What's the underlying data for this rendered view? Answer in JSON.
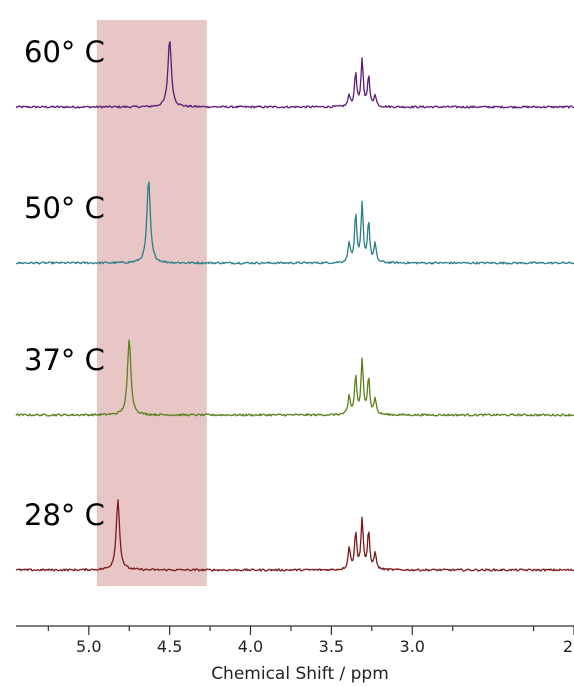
{
  "chart_data": {
    "type": "line",
    "title": "",
    "xlabel": "Chemical Shift / ppm",
    "ylabel": "",
    "x_reversed": true,
    "xlim": [
      5.45,
      2.0
    ],
    "x_ticks_major": [
      5.0,
      4.5,
      4.0,
      3.5,
      3.0,
      2.0
    ],
    "x_tick_labels": [
      "5.0",
      "4.5",
      "4.0",
      "3.5",
      "3.0",
      "2"
    ],
    "x_ticks_minor": [
      5.25,
      4.75,
      4.25,
      3.75,
      3.25,
      2.75,
      2.25
    ],
    "highlight_region": {
      "x_range": [
        4.95,
        4.27
      ],
      "color": "#e8c6c6"
    },
    "grid": false,
    "legend": "none",
    "series": [
      {
        "name": "60° C",
        "color": "#5a1a78",
        "peak_shift": 4.5,
        "peak_height": 1.0,
        "multiplet": {
          "center": 3.31,
          "lines": [
            [
              3.39,
              0.17
            ],
            [
              3.35,
              0.5
            ],
            [
              3.31,
              0.68
            ],
            [
              3.27,
              0.45
            ],
            [
              3.23,
              0.17
            ]
          ]
        }
      },
      {
        "name": "50° C",
        "color": "#2a7e86",
        "peak_shift": 4.63,
        "peak_height": 1.22,
        "multiplet": {
          "center": 3.31,
          "lines": [
            [
              3.39,
              0.3
            ],
            [
              3.35,
              0.7
            ],
            [
              3.31,
              0.85
            ],
            [
              3.27,
              0.6
            ],
            [
              3.23,
              0.27
            ]
          ]
        }
      },
      {
        "name": "37° C",
        "color": "#5a7f1e",
        "peak_shift": 4.75,
        "peak_height": 1.12,
        "multiplet": {
          "center": 3.31,
          "lines": [
            [
              3.39,
              0.27
            ],
            [
              3.35,
              0.57
            ],
            [
              3.31,
              0.8
            ],
            [
              3.27,
              0.56
            ],
            [
              3.23,
              0.24
            ]
          ]
        }
      },
      {
        "name": "28° C",
        "color": "#7a1a1a",
        "peak_shift": 4.82,
        "peak_height": 1.03,
        "multiplet": {
          "center": 3.31,
          "lines": [
            [
              3.39,
              0.33
            ],
            [
              3.35,
              0.55
            ],
            [
              3.31,
              0.75
            ],
            [
              3.27,
              0.55
            ],
            [
              3.23,
              0.25
            ]
          ]
        }
      }
    ]
  }
}
